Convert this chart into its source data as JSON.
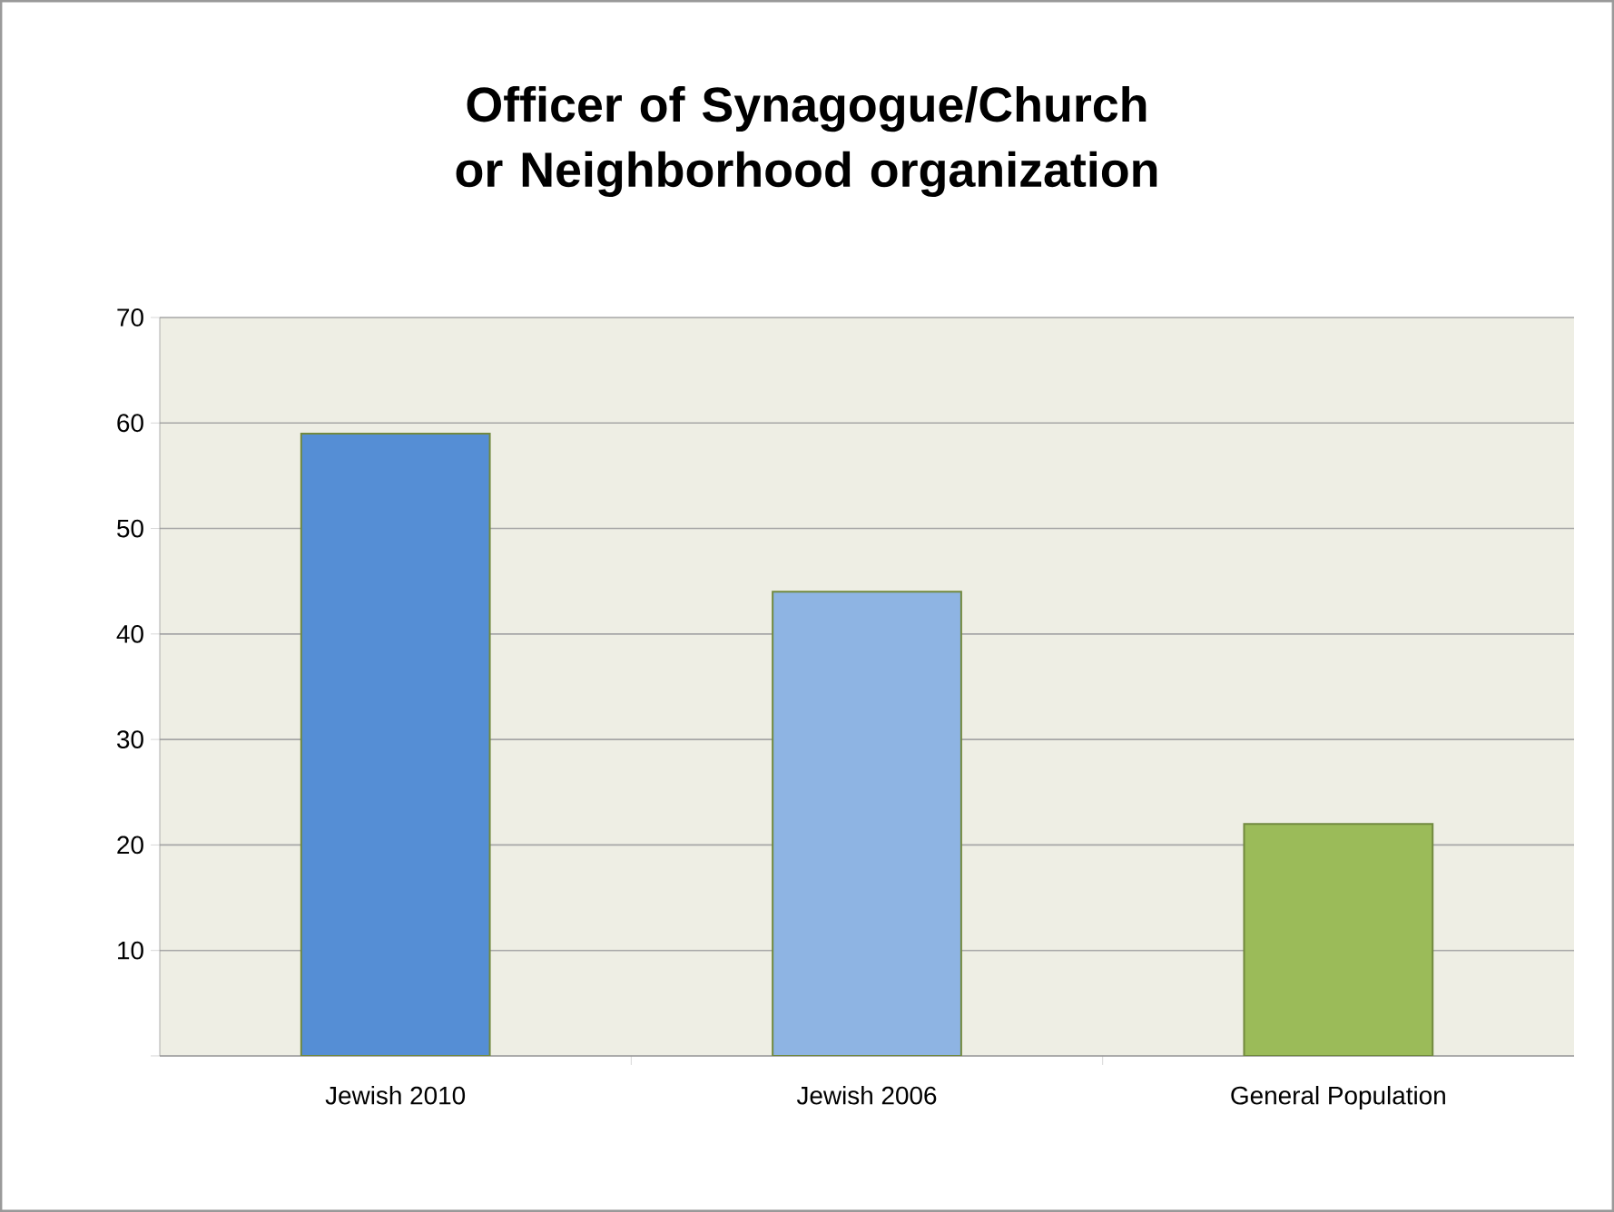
{
  "chart_data": {
    "type": "bar",
    "title": "Officer of Synagogue/Church or Neighborhood organization",
    "categories": [
      "Jewish 2010",
      "Jewish 2006",
      "General Population"
    ],
    "values": [
      59,
      44,
      22
    ],
    "colors": [
      "#558ed5",
      "#8eb4e3",
      "#9bbb59"
    ],
    "ylim": [
      0,
      70
    ],
    "yticks": [
      {
        "value": 0,
        "label": null
      },
      10,
      20,
      30,
      40,
      50,
      60,
      70
    ],
    "grid": "y"
  }
}
